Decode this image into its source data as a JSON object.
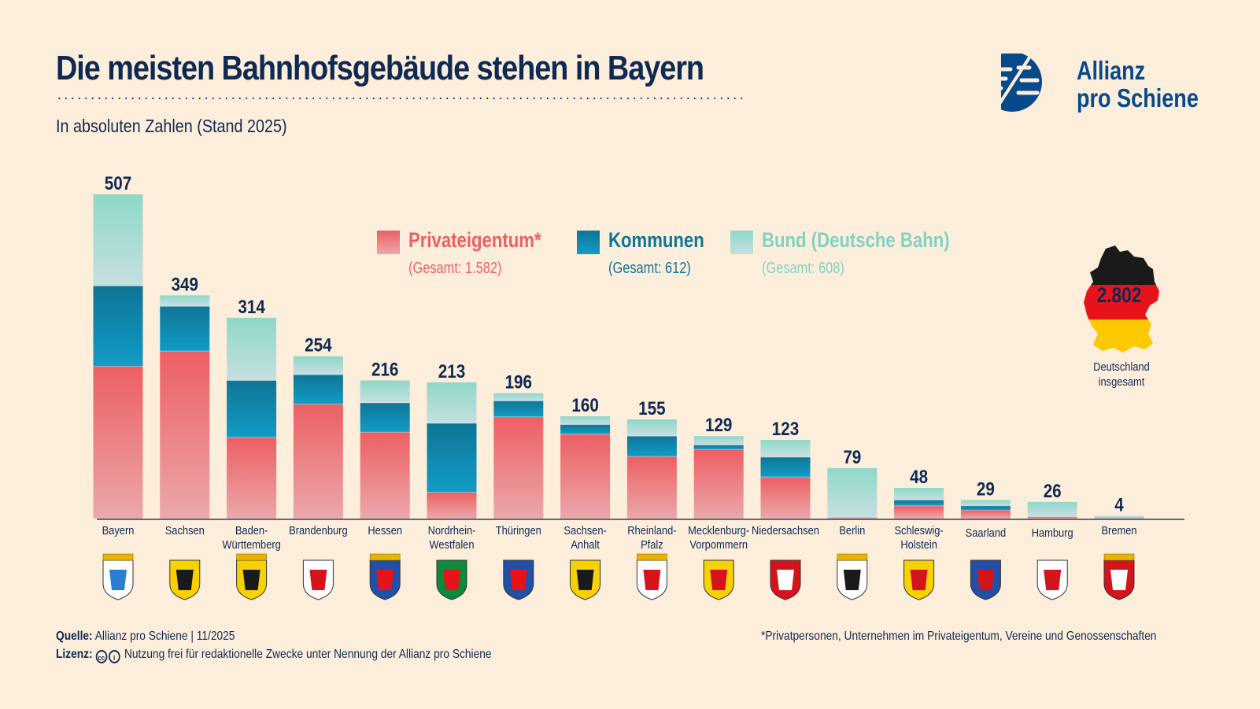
{
  "header": {
    "title": "Die meisten Bahnhofsgebäude stehen in Bayern",
    "subtitle": "In absoluten Zahlen (Stand 2025)"
  },
  "logo": {
    "line1": "Allianz",
    "line2": "pro Schiene",
    "color": "#064a8c"
  },
  "legend": [
    {
      "key": "private",
      "label": "Privateigentum*",
      "total": "(Gesamt: 1.582)",
      "color": "#ec5f63"
    },
    {
      "key": "kommunen",
      "label": "Kommunen",
      "total": "(Gesamt: 612)",
      "color": "#0f7596"
    },
    {
      "key": "bund",
      "label": "Bund (Deutsche Bahn)",
      "total": "(Gesamt: 608)",
      "color": "#82d2c0"
    }
  ],
  "germany": {
    "total": "2.802",
    "label_line1": "Deutschland",
    "label_line2": "insgesamt"
  },
  "footer": {
    "source_label": "Quelle:",
    "source_text": "Allianz pro Schiene | 11/2025",
    "license_label": "Lizenz:",
    "license_icons": [
      "cc-icon",
      "attribution-icon"
    ],
    "license_text": "Nutzung frei für redaktionelle Zwecke unter Nennung der Allianz pro Schiene",
    "footnote": "*Privatpersonen, Unternehmen im Privateigentum, Vereine und Genossenschaften"
  },
  "chart_data": {
    "type": "bar",
    "stacked": true,
    "title": "Die meisten Bahnhofsgebäude stehen in Bayern",
    "subtitle": "In absoluten Zahlen (Stand 2025)",
    "xlabel": "",
    "ylabel": "",
    "ylim": [
      0,
      507
    ],
    "grid": false,
    "legend_position": "top-center",
    "categories": [
      "Bayern",
      "Sachsen",
      "Baden-Württemberg",
      "Brandenburg",
      "Hessen",
      "Nordrhein-Westfalen",
      "Thüringen",
      "Sachsen-Anhalt",
      "Rheinland-Pfalz",
      "Mecklenburg-Vorpommern",
      "Niedersachsen",
      "Berlin",
      "Schleswig-Holstein",
      "Saarland",
      "Hamburg",
      "Bremen"
    ],
    "category_labels": [
      [
        "Bayern"
      ],
      [
        "Sachsen"
      ],
      [
        "Baden-",
        "Württemberg"
      ],
      [
        "Brandenburg"
      ],
      [
        "Hessen"
      ],
      [
        "Nordrhein-",
        "Westfalen"
      ],
      [
        "Thüringen"
      ],
      [
        "Sachsen-",
        "Anhalt"
      ],
      [
        "Rheinland-",
        "Pfalz"
      ],
      [
        "Mecklenburg-",
        "Vorpommern"
      ],
      [
        "Niedersachsen"
      ],
      [
        "Berlin"
      ],
      [
        "Schleswig-",
        "Holstein"
      ],
      [
        "Saarland"
      ],
      [
        "Hamburg"
      ],
      [
        "Bremen"
      ]
    ],
    "totals": [
      507,
      349,
      314,
      254,
      216,
      213,
      196,
      160,
      155,
      129,
      123,
      79,
      48,
      29,
      26,
      4
    ],
    "series": [
      {
        "name": "Privateigentum*",
        "values": [
          238,
          262,
          127,
          179,
          135,
          41,
          159,
          132,
          97,
          108,
          65,
          2,
          20,
          13,
          3,
          1
        ]
      },
      {
        "name": "Kommunen",
        "values": [
          126,
          70,
          89,
          46,
          46,
          108,
          25,
          15,
          32,
          7,
          31,
          0,
          9,
          7,
          0,
          1
        ]
      },
      {
        "name": "Bund (Deutsche Bahn)",
        "values": [
          143,
          17,
          98,
          29,
          35,
          64,
          12,
          13,
          26,
          14,
          27,
          77,
          19,
          9,
          23,
          2
        ]
      }
    ],
    "coat_of_arms": [
      "bavaria-arms-icon",
      "saxony-arms-icon",
      "bw-arms-icon",
      "brandenburg-arms-icon",
      "hesse-arms-icon",
      "nrw-arms-icon",
      "thuringia-arms-icon",
      "saxony-anhalt-arms-icon",
      "rlp-arms-icon",
      "mv-arms-icon",
      "lower-saxony-arms-icon",
      "berlin-arms-icon",
      "sh-arms-icon",
      "saarland-arms-icon",
      "hamburg-arms-icon",
      "bremen-arms-icon"
    ]
  }
}
